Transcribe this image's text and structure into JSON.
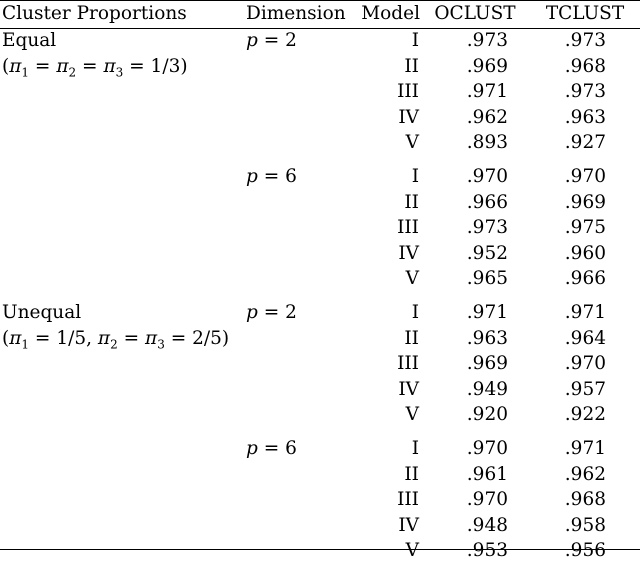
{
  "table": {
    "headers": [
      "Cluster Proportions",
      "Dimension",
      "Model",
      "OCLUST",
      "TCLUST"
    ],
    "groups": [
      {
        "proportion_label": "Equal",
        "proportion_detail": "(π1 = π2 = π3 = 1/3)",
        "blocks": [
          {
            "dimension": "p = 2",
            "rows": [
              {
                "model": "I",
                "oclust": ".973",
                "tclust": ".973"
              },
              {
                "model": "II",
                "oclust": ".969",
                "tclust": ".968"
              },
              {
                "model": "III",
                "oclust": ".971",
                "tclust": ".973"
              },
              {
                "model": "IV",
                "oclust": ".962",
                "tclust": ".963"
              },
              {
                "model": "V",
                "oclust": ".893",
                "tclust": ".927"
              }
            ]
          },
          {
            "dimension": "p = 6",
            "rows": [
              {
                "model": "I",
                "oclust": ".970",
                "tclust": ".970"
              },
              {
                "model": "II",
                "oclust": ".966",
                "tclust": ".969"
              },
              {
                "model": "III",
                "oclust": ".973",
                "tclust": ".975"
              },
              {
                "model": "IV",
                "oclust": ".952",
                "tclust": ".960"
              },
              {
                "model": "V",
                "oclust": ".965",
                "tclust": ".966"
              }
            ]
          }
        ]
      },
      {
        "proportion_label": "Unequal",
        "proportion_detail": "(π1 = 1/5, π2 = π3 = 2/5)",
        "blocks": [
          {
            "dimension": "p = 2",
            "rows": [
              {
                "model": "I",
                "oclust": ".971",
                "tclust": ".971"
              },
              {
                "model": "II",
                "oclust": ".963",
                "tclust": ".964"
              },
              {
                "model": "III",
                "oclust": ".969",
                "tclust": ".970"
              },
              {
                "model": "IV",
                "oclust": ".949",
                "tclust": ".957"
              },
              {
                "model": "V",
                "oclust": ".920",
                "tclust": ".922"
              }
            ]
          },
          {
            "dimension": "p = 6",
            "rows": [
              {
                "model": "I",
                "oclust": ".970",
                "tclust": ".971"
              },
              {
                "model": "II",
                "oclust": ".961",
                "tclust": ".962"
              },
              {
                "model": "III",
                "oclust": ".970",
                "tclust": ".968"
              },
              {
                "model": "IV",
                "oclust": ".948",
                "tclust": ".958"
              },
              {
                "model": "V",
                "oclust": ".953",
                "tclust": ".956"
              }
            ]
          }
        ]
      }
    ]
  }
}
